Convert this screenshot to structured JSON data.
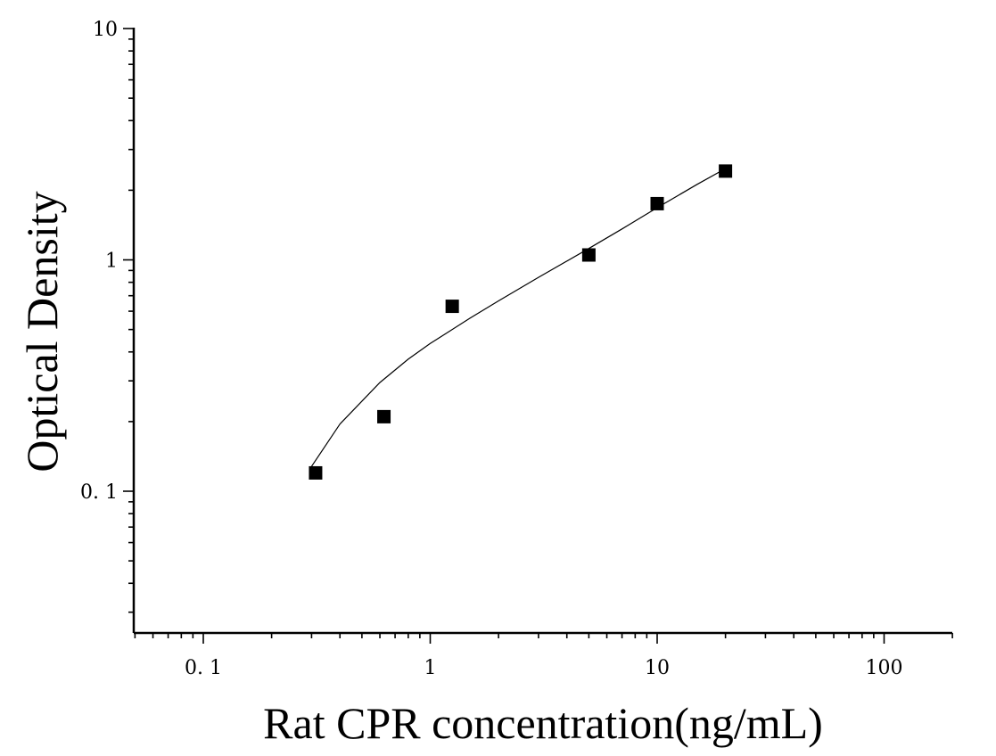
{
  "chart_data": {
    "type": "scatter",
    "title": "",
    "xlabel": "Rat CPR concentration(ng/mL)",
    "ylabel": "Optical Density",
    "x_scale": "log",
    "y_scale": "log",
    "xlim": [
      0.05,
      200
    ],
    "ylim": [
      0.027,
      10
    ],
    "x_ticks": [
      {
        "value": 0.1,
        "label": "0. 1"
      },
      {
        "value": 1,
        "label": "1"
      },
      {
        "value": 10,
        "label": "10"
      },
      {
        "value": 100,
        "label": "100"
      }
    ],
    "y_ticks": [
      {
        "value": 0.1,
        "label": "0. 1"
      },
      {
        "value": 1,
        "label": "1"
      },
      {
        "value": 10,
        "label": "10"
      }
    ],
    "grid": false,
    "legend": "none",
    "series": [
      {
        "kind": "points",
        "marker": "square",
        "color": "#000000",
        "x": [
          0.3125,
          0.625,
          1.25,
          5,
          10,
          20
        ],
        "y": [
          0.12,
          0.21,
          0.63,
          1.05,
          1.75,
          2.42
        ]
      },
      {
        "kind": "fit-line",
        "color": "#000000",
        "x": [
          0.3,
          0.4,
          0.6,
          0.8,
          1.0,
          1.5,
          2,
          3,
          5,
          7,
          10,
          15,
          20
        ],
        "y": [
          0.128,
          0.195,
          0.295,
          0.372,
          0.435,
          0.56,
          0.665,
          0.84,
          1.12,
          1.36,
          1.68,
          2.12,
          2.48
        ]
      }
    ]
  }
}
